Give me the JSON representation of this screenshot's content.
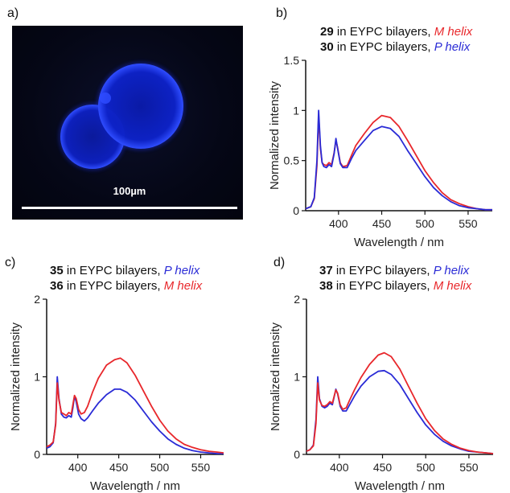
{
  "colors": {
    "red": "#e8272b",
    "blue": "#2a2bd6",
    "axis": "#111111"
  },
  "panel_a": {
    "letter": "a)",
    "scale_label": "100µm"
  },
  "chart_data": [
    {
      "panel": "b)",
      "type": "line",
      "legend": [
        {
          "compound": "29",
          "text": " in EYPC bilayers, ",
          "helix": "M helix",
          "color": "red"
        },
        {
          "compound": "30",
          "text": " in EYPC bilayers, ",
          "helix": "P helix",
          "color": "blue"
        }
      ],
      "xlabel": "Wavelength / nm",
      "ylabel": "Normalized intensity",
      "xlim": [
        362,
        578
      ],
      "ylim": [
        0,
        1.5
      ],
      "xticks": [
        "400",
        "450",
        "500",
        "550"
      ],
      "xtick_values": [
        400,
        450,
        500,
        550
      ],
      "yticks": [
        "0",
        "0.5",
        "1",
        "1.5"
      ],
      "ytick_values": [
        0,
        0.5,
        1,
        1.5
      ],
      "series": [
        {
          "name": "29 in EYPC bilayers, M helix",
          "color": "red",
          "x": [
            362,
            368,
            372,
            375,
            377,
            379,
            381,
            383,
            386,
            389,
            392,
            395,
            397,
            399,
            402,
            405,
            410,
            415,
            420,
            430,
            440,
            450,
            460,
            470,
            480,
            490,
            500,
            510,
            520,
            530,
            540,
            550,
            560,
            570,
            578
          ],
          "y": [
            0.02,
            0.04,
            0.12,
            0.45,
            0.95,
            0.62,
            0.48,
            0.46,
            0.45,
            0.48,
            0.46,
            0.58,
            0.7,
            0.63,
            0.48,
            0.44,
            0.45,
            0.55,
            0.65,
            0.77,
            0.88,
            0.95,
            0.93,
            0.84,
            0.7,
            0.55,
            0.4,
            0.28,
            0.18,
            0.11,
            0.07,
            0.04,
            0.02,
            0.01,
            0.01
          ]
        },
        {
          "name": "30 in EYPC bilayers, P helix",
          "color": "blue",
          "x": [
            362,
            368,
            372,
            375,
            377,
            379,
            381,
            383,
            386,
            389,
            392,
            395,
            397,
            399,
            402,
            405,
            410,
            415,
            420,
            430,
            440,
            450,
            460,
            470,
            480,
            490,
            500,
            510,
            520,
            530,
            540,
            550,
            560,
            570,
            578
          ],
          "y": [
            0.02,
            0.04,
            0.13,
            0.5,
            1.0,
            0.65,
            0.48,
            0.44,
            0.43,
            0.46,
            0.44,
            0.57,
            0.72,
            0.62,
            0.47,
            0.43,
            0.43,
            0.52,
            0.6,
            0.7,
            0.8,
            0.84,
            0.82,
            0.74,
            0.6,
            0.47,
            0.34,
            0.23,
            0.15,
            0.09,
            0.05,
            0.03,
            0.02,
            0.01,
            0.01
          ]
        }
      ]
    },
    {
      "panel": "c)",
      "type": "line",
      "legend": [
        {
          "compound": "35",
          "text": " in EYPC bilayers, ",
          "helix": "P helix",
          "color": "blue"
        },
        {
          "compound": "36",
          "text": " in EYPC bilayers, ",
          "helix": "M helix",
          "color": "red"
        }
      ],
      "xlabel": "Wavelength / nm",
      "ylabel": "Normalized intensity",
      "xlim": [
        362,
        578
      ],
      "ylim": [
        0,
        2
      ],
      "xticks": [
        "400",
        "450",
        "500",
        "550"
      ],
      "xtick_values": [
        400,
        450,
        500,
        550
      ],
      "yticks": [
        "0",
        "1",
        "2"
      ],
      "ytick_values": [
        0,
        1,
        2
      ],
      "series": [
        {
          "name": "35 in EYPC bilayers, P helix",
          "color": "blue",
          "x": [
            362,
            366,
            370,
            373,
            375,
            377,
            380,
            383,
            386,
            389,
            392,
            394,
            396,
            398,
            401,
            404,
            408,
            412,
            418,
            425,
            435,
            445,
            452,
            460,
            470,
            480,
            490,
            500,
            510,
            520,
            530,
            540,
            550,
            560,
            570,
            578
          ],
          "y": [
            0.08,
            0.1,
            0.15,
            0.4,
            1.0,
            0.72,
            0.52,
            0.48,
            0.47,
            0.5,
            0.48,
            0.6,
            0.75,
            0.68,
            0.52,
            0.46,
            0.43,
            0.47,
            0.56,
            0.66,
            0.77,
            0.84,
            0.84,
            0.8,
            0.7,
            0.56,
            0.42,
            0.3,
            0.2,
            0.13,
            0.08,
            0.05,
            0.03,
            0.02,
            0.01,
            0.01
          ]
        },
        {
          "name": "36 in EYPC bilayers, M helix",
          "color": "red",
          "x": [
            362,
            366,
            370,
            373,
            375,
            377,
            380,
            383,
            386,
            389,
            392,
            394,
            396,
            398,
            401,
            404,
            408,
            412,
            418,
            425,
            435,
            445,
            452,
            460,
            470,
            480,
            490,
            500,
            510,
            520,
            530,
            540,
            550,
            560,
            570,
            578
          ],
          "y": [
            0.1,
            0.12,
            0.16,
            0.38,
            0.92,
            0.7,
            0.54,
            0.52,
            0.5,
            0.54,
            0.52,
            0.64,
            0.76,
            0.72,
            0.58,
            0.52,
            0.54,
            0.62,
            0.8,
            0.98,
            1.15,
            1.22,
            1.24,
            1.18,
            1.02,
            0.82,
            0.62,
            0.44,
            0.3,
            0.2,
            0.13,
            0.09,
            0.06,
            0.04,
            0.03,
            0.02
          ]
        }
      ]
    },
    {
      "panel": "d)",
      "type": "line",
      "legend": [
        {
          "compound": "37",
          "text": " in EYPC bilayers, ",
          "helix": "P helix",
          "color": "blue"
        },
        {
          "compound": "38",
          "text": " in EYPC bilayers, ",
          "helix": "M helix",
          "color": "red"
        }
      ],
      "xlabel": "Wavelength / nm",
      "ylabel": "Normalized intensity",
      "xlim": [
        362,
        578
      ],
      "ylim": [
        0,
        2
      ],
      "xticks": [
        "400",
        "450",
        "500",
        "550"
      ],
      "xtick_values": [
        400,
        450,
        500,
        550
      ],
      "yticks": [
        "0",
        "1",
        "2"
      ],
      "ytick_values": [
        0,
        1,
        2
      ],
      "series": [
        {
          "name": "37 in EYPC bilayers, P helix",
          "color": "blue",
          "x": [
            362,
            366,
            370,
            373,
            375,
            377,
            380,
            383,
            386,
            389,
            392,
            394,
            396,
            398,
            401,
            404,
            408,
            412,
            418,
            425,
            435,
            445,
            452,
            460,
            470,
            480,
            490,
            500,
            510,
            520,
            530,
            540,
            550,
            560,
            570,
            578
          ],
          "y": [
            0.04,
            0.06,
            0.12,
            0.45,
            1.0,
            0.72,
            0.62,
            0.6,
            0.62,
            0.66,
            0.64,
            0.74,
            0.84,
            0.78,
            0.62,
            0.56,
            0.56,
            0.64,
            0.76,
            0.88,
            1.0,
            1.07,
            1.08,
            1.03,
            0.9,
            0.72,
            0.54,
            0.38,
            0.26,
            0.17,
            0.11,
            0.07,
            0.04,
            0.03,
            0.02,
            0.01
          ]
        },
        {
          "name": "38 in EYPC bilayers, M helix",
          "color": "red",
          "x": [
            362,
            366,
            370,
            373,
            375,
            377,
            380,
            383,
            386,
            389,
            392,
            394,
            396,
            398,
            401,
            404,
            408,
            412,
            418,
            425,
            435,
            445,
            452,
            460,
            470,
            480,
            490,
            500,
            510,
            520,
            530,
            540,
            550,
            560,
            570,
            578
          ],
          "y": [
            0.04,
            0.06,
            0.11,
            0.4,
            0.92,
            0.7,
            0.63,
            0.62,
            0.64,
            0.68,
            0.66,
            0.75,
            0.83,
            0.79,
            0.64,
            0.58,
            0.6,
            0.7,
            0.84,
            0.99,
            1.16,
            1.28,
            1.31,
            1.26,
            1.1,
            0.88,
            0.66,
            0.46,
            0.31,
            0.2,
            0.13,
            0.08,
            0.05,
            0.03,
            0.02,
            0.01
          ]
        }
      ]
    }
  ]
}
